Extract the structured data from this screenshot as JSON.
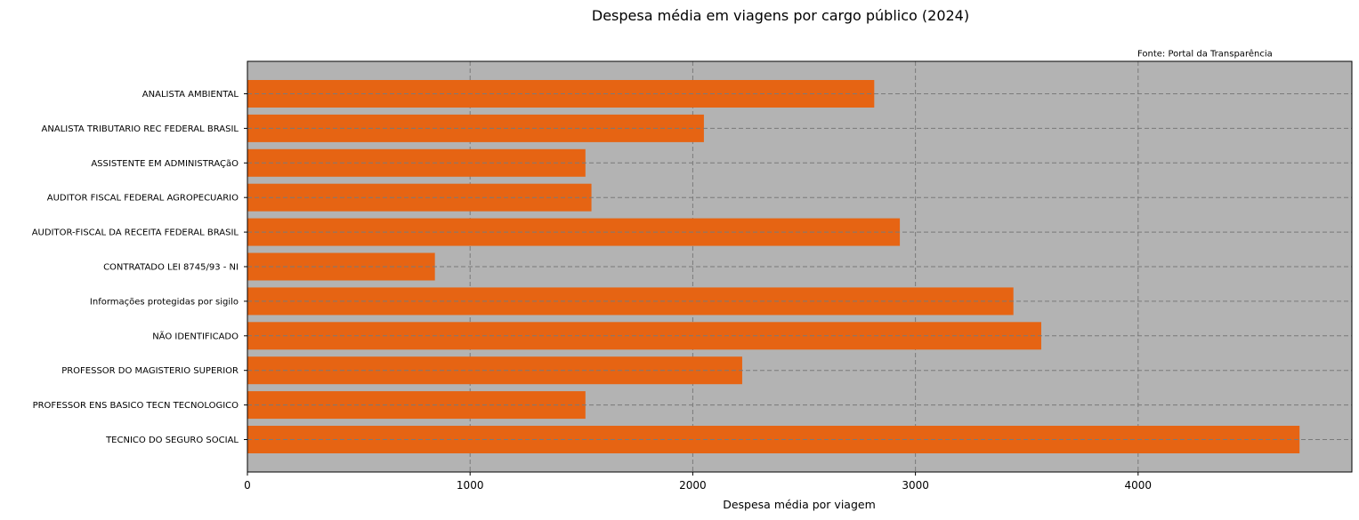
{
  "chart_data": {
    "type": "bar",
    "orientation": "horizontal",
    "title": "Despesa média em viagens por cargo público (2024)",
    "annotation": "Fonte: Portal da Transparência",
    "xlabel": "Despesa média por viagem",
    "ylabel": "",
    "xlim": [
      0,
      4960
    ],
    "xticks": [
      0,
      1000,
      2000,
      3000,
      4000
    ],
    "grid": true,
    "colors": {
      "bar": "#e66413",
      "plot_bg": "#b3b3b3",
      "grid": "#7a7a7a"
    },
    "categories": [
      "ANALISTA AMBIENTAL",
      "ANALISTA TRIBUTARIO REC FEDERAL BRASIL",
      "ASSISTENTE EM ADMINISTRAÇãO",
      "AUDITOR FISCAL FEDERAL AGROPECUARIO",
      "AUDITOR-FISCAL DA RECEITA FEDERAL BRASIL",
      "CONTRATADO LEI 8745/93 - NI",
      "Informações protegidas por sigilo",
      "NÃO IDENTIFICADO",
      "PROFESSOR DO MAGISTERIO SUPERIOR",
      "PROFESSOR ENS BASICO TECN TECNOLOGICO",
      "TECNICO DO SEGURO SOCIAL"
    ],
    "values": [
      2815,
      2050,
      1518,
      1545,
      2930,
      842,
      3440,
      3565,
      2222,
      1518,
      4725
    ]
  }
}
